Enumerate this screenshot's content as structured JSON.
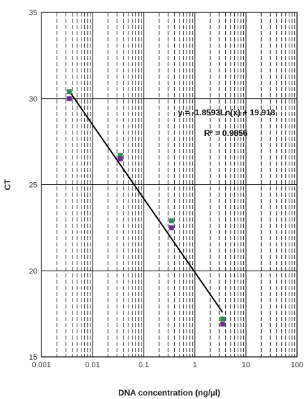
{
  "chart_data": {
    "type": "scatter",
    "xlabel": "DNA concentration (ng/µl)",
    "ylabel": "CT",
    "x_scale": "log",
    "xlim": [
      0.001,
      100
    ],
    "ylim": [
      15,
      35
    ],
    "x_ticks": [
      0.001,
      0.01,
      0.1,
      1,
      10,
      100
    ],
    "x_tick_labels": [
      "0.001",
      "0.01",
      "0.1",
      "1",
      "10",
      "100"
    ],
    "y_ticks": [
      15,
      20,
      25,
      30,
      35
    ],
    "y_tick_labels": [
      "15",
      "20",
      "25",
      "30",
      "35"
    ],
    "grid": {
      "major_x": "solid",
      "minor_x": "dashed",
      "major_y": "solid"
    },
    "series": [
      {
        "color": "#2e8b57",
        "marker": "square",
        "points": [
          {
            "x": 0.0035,
            "y": 30.4
          },
          {
            "x": 0.035,
            "y": 26.7
          },
          {
            "x": 0.35,
            "y": 22.9
          },
          {
            "x": 3.5,
            "y": 17.2
          }
        ]
      },
      {
        "color": "#6a2c91",
        "marker": "square",
        "points": [
          {
            "x": 0.0035,
            "y": 30.0
          },
          {
            "x": 0.035,
            "y": 26.5
          },
          {
            "x": 0.35,
            "y": 22.5
          },
          {
            "x": 3.5,
            "y": 16.9
          }
        ]
      }
    ],
    "trendline": {
      "type": "logarithmic",
      "slope": -1.8593,
      "intercept": 19.918,
      "x_range": [
        0.0035,
        3.5
      ],
      "color": "#000000"
    },
    "annotations": {
      "equation": "y = -1.8593Ln(x) + 19.918",
      "r_squared_label": "R² = 0.9856"
    }
  }
}
